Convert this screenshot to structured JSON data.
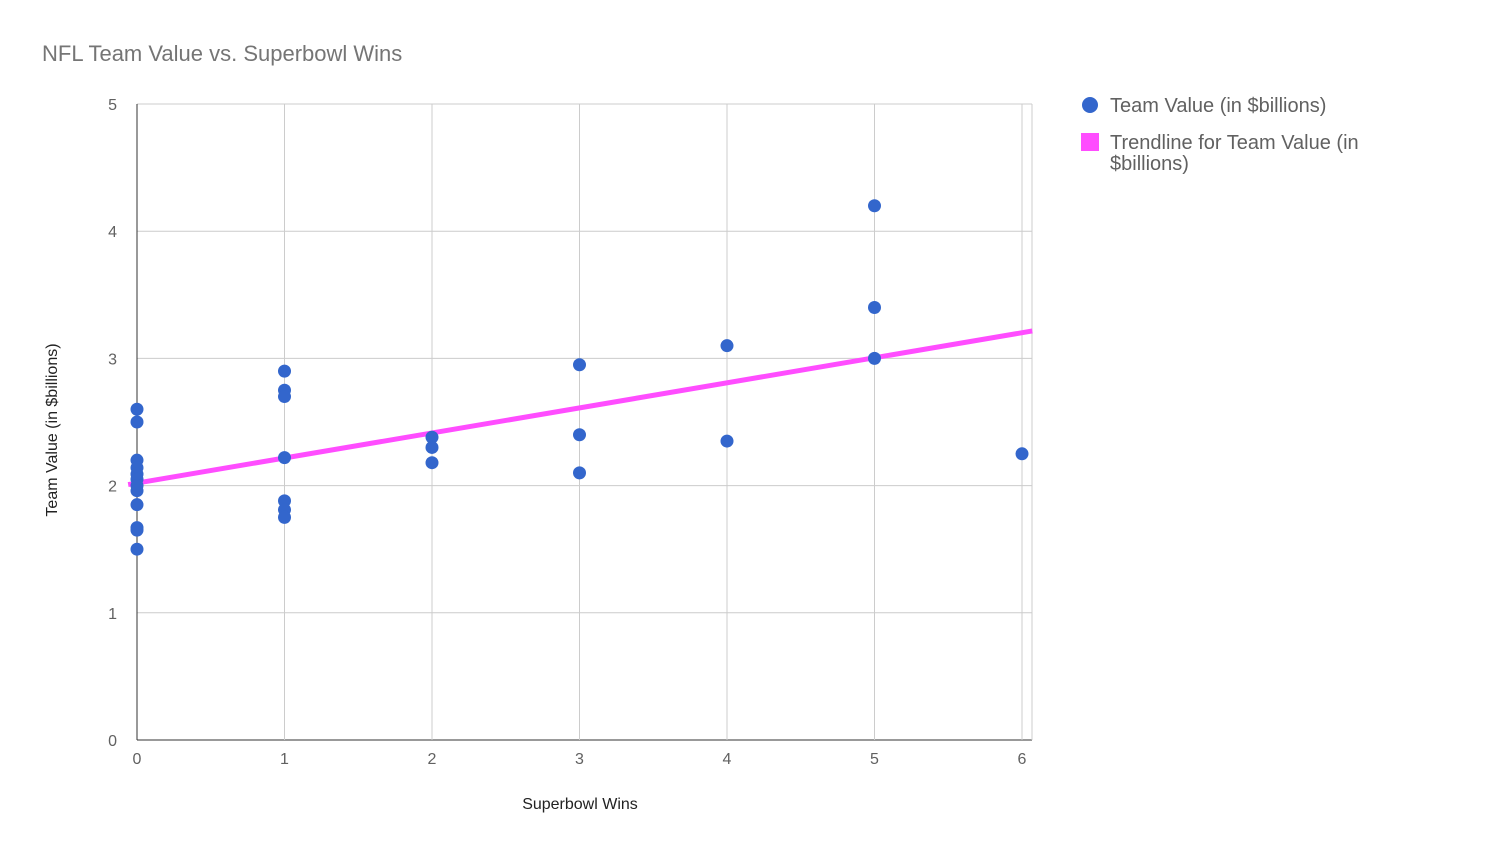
{
  "chart_data": {
    "type": "scatter",
    "title": "NFL Team Value vs. Superbowl Wins",
    "xlabel": "Superbowl Wins",
    "ylabel": "Team Value (in $billions)",
    "xlim": [
      0,
      6
    ],
    "ylim": [
      0,
      5
    ],
    "xticks": [
      "0",
      "1",
      "2",
      "3",
      "4",
      "5",
      "6"
    ],
    "yticks": [
      "0",
      "1",
      "2",
      "3",
      "4",
      "5"
    ],
    "grid": true,
    "legend_position": "right",
    "series": [
      {
        "name": "Team Value (in $billions)",
        "color": "#3366cc",
        "points": [
          [
            0,
            2.6
          ],
          [
            0,
            2.5
          ],
          [
            0,
            2.2
          ],
          [
            0,
            2.14
          ],
          [
            0,
            2.09
          ],
          [
            0,
            2.05
          ],
          [
            0,
            2.0
          ],
          [
            0,
            1.96
          ],
          [
            0,
            1.85
          ],
          [
            0,
            1.67
          ],
          [
            0,
            1.65
          ],
          [
            0,
            1.5
          ],
          [
            1,
            2.9
          ],
          [
            1,
            2.75
          ],
          [
            1,
            2.7
          ],
          [
            1,
            2.22
          ],
          [
            1,
            1.88
          ],
          [
            1,
            1.81
          ],
          [
            1,
            1.75
          ],
          [
            2,
            2.38
          ],
          [
            2,
            2.3
          ],
          [
            2,
            2.18
          ],
          [
            3,
            2.95
          ],
          [
            3,
            2.4
          ],
          [
            3,
            2.1
          ],
          [
            4,
            3.1
          ],
          [
            4,
            2.35
          ],
          [
            5,
            4.2
          ],
          [
            5,
            3.4
          ],
          [
            5,
            3.0
          ],
          [
            6,
            2.25
          ]
        ]
      }
    ],
    "trendline": {
      "name": "Trendline for Team Value (in $billions)",
      "legend_lines": [
        "Trendline for Team Value (in",
        "$billions)"
      ],
      "color": "#ff4dff",
      "intercept": 2.02,
      "slope": 0.197
    }
  }
}
